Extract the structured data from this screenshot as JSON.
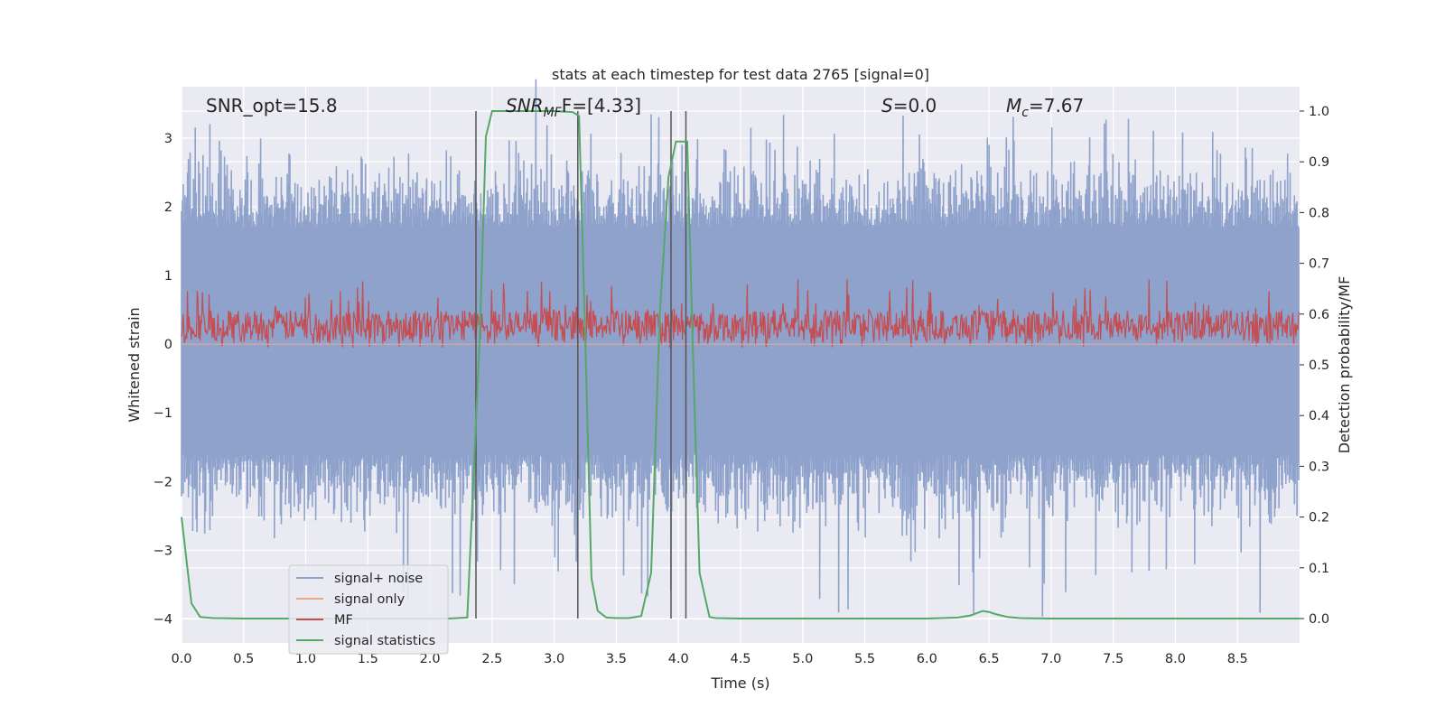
{
  "chart_data": {
    "type": "line",
    "title": "stats at each timestep for test data 2765 [signal=0]",
    "xlabel": "Time (s)",
    "ylabel_left": "Whitened strain",
    "ylabel_right": "Detection probability/MF",
    "xlim": [
      0.0,
      9.0
    ],
    "ylim_left": [
      -4.35,
      3.75
    ],
    "ylim_right": [
      -0.048,
      1.048
    ],
    "x_ticks": [
      "0.0",
      "0.5",
      "1.0",
      "1.5",
      "2.0",
      "2.5",
      "3.0",
      "3.5",
      "4.0",
      "4.5",
      "5.0",
      "5.5",
      "6.0",
      "6.5",
      "7.0",
      "7.5",
      "8.0",
      "8.5"
    ],
    "y_left_ticks": [
      "−4",
      "−3",
      "−2",
      "−1",
      "0",
      "1",
      "2",
      "3"
    ],
    "y_right_ticks": [
      "0.0",
      "0.1",
      "0.2",
      "0.3",
      "0.4",
      "0.5",
      "0.6",
      "0.7",
      "0.8",
      "0.9",
      "1.0"
    ],
    "grid": true,
    "legend_position": "lower-left",
    "annotations": {
      "snr_opt": "SNR_opt=15.8",
      "snr_mf_main": "SNR",
      "snr_mf_sub": "MF",
      "snr_mf_rest": "F=[4.33]",
      "s_main": "S",
      "s_rest": "=0.0",
      "mc_main": "M",
      "mc_sub": "c",
      "mc_rest": "=7.67"
    },
    "series": [
      {
        "name": "signal+ noise",
        "color": "#8ea2cc",
        "axis": "left",
        "description_values": {
          "typical_range": [
            -1.9,
            2.0
          ],
          "extreme_range": [
            -4.0,
            3.4
          ],
          "x_range": [
            0.0,
            9.0
          ]
        }
      },
      {
        "name": "signal only",
        "color": "#e8a88e",
        "axis": "left",
        "x": [
          0.0,
          9.0
        ],
        "values": [
          0.0,
          0.0
        ]
      },
      {
        "name": "MF",
        "color": "#c44e52",
        "axis": "left",
        "description_values": {
          "typical_range": [
            0.0,
            0.5
          ],
          "extreme_range": [
            -0.05,
            0.95
          ],
          "x_range": [
            0.0,
            9.0
          ]
        }
      },
      {
        "name": "signal statistics",
        "color": "#55a868",
        "axis": "right",
        "x": [
          0.0,
          0.08,
          0.15,
          0.25,
          0.5,
          1.0,
          1.5,
          2.0,
          2.15,
          2.3,
          2.4,
          2.45,
          2.5,
          2.75,
          3.0,
          3.15,
          3.2,
          3.25,
          3.3,
          3.35,
          3.42,
          3.5,
          3.6,
          3.7,
          3.78,
          3.85,
          3.92,
          3.98,
          4.02,
          4.07,
          4.12,
          4.17,
          4.25,
          4.3,
          4.5,
          5.0,
          5.5,
          6.0,
          6.25,
          6.35,
          6.45,
          6.5,
          6.55,
          6.65,
          6.75,
          7.0,
          7.5,
          8.0,
          8.5,
          9.0
        ],
        "values": [
          0.2,
          0.03,
          0.003,
          0.001,
          0.0,
          0.0,
          0.0,
          0.0,
          0.0,
          0.002,
          0.55,
          0.95,
          1.0,
          1.0,
          1.0,
          0.998,
          0.99,
          0.55,
          0.08,
          0.015,
          0.002,
          0.001,
          0.001,
          0.005,
          0.09,
          0.6,
          0.87,
          0.94,
          0.94,
          0.94,
          0.5,
          0.09,
          0.003,
          0.001,
          0.0,
          0.0,
          0.0,
          0.0,
          0.002,
          0.006,
          0.015,
          0.013,
          0.009,
          0.003,
          0.001,
          0.0,
          0.0,
          0.0,
          0.0,
          0.0
        ]
      }
    ],
    "vertical_markers_x": [
      2.37,
      3.19,
      3.94,
      4.06
    ]
  }
}
